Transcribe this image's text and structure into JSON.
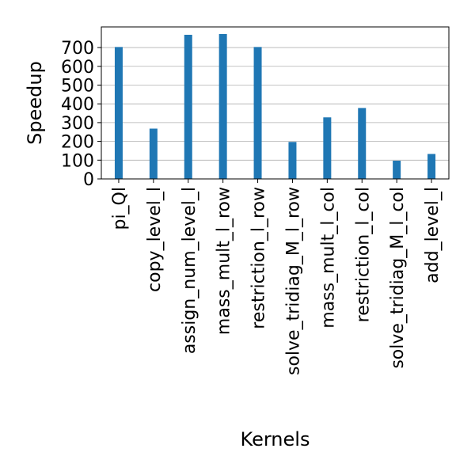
{
  "chart_data": {
    "type": "bar",
    "title": "",
    "xlabel": "Kernels",
    "ylabel": "Speedup",
    "categories": [
      "pi_Ql",
      "copy_level_l",
      "assign_num_level_l",
      "mass_mult_l_row",
      "restriction_l_row",
      "solve_tridiag_M_l_row",
      "mass_mult_l_col",
      "restriction_l_col",
      "solve_tridiag_M_l_col",
      "add_level_l"
    ],
    "values": [
      703,
      268,
      768,
      772,
      703,
      197,
      328,
      378,
      97,
      133
    ],
    "yticks": [
      "0",
      "100",
      "200",
      "300",
      "400",
      "500",
      "600",
      "700"
    ],
    "ylim": [
      0,
      810
    ],
    "grid": "horizontal",
    "bar_color": "#1f77b4",
    "grid_color": "#b0b0b0",
    "axis_color": "#000000"
  }
}
